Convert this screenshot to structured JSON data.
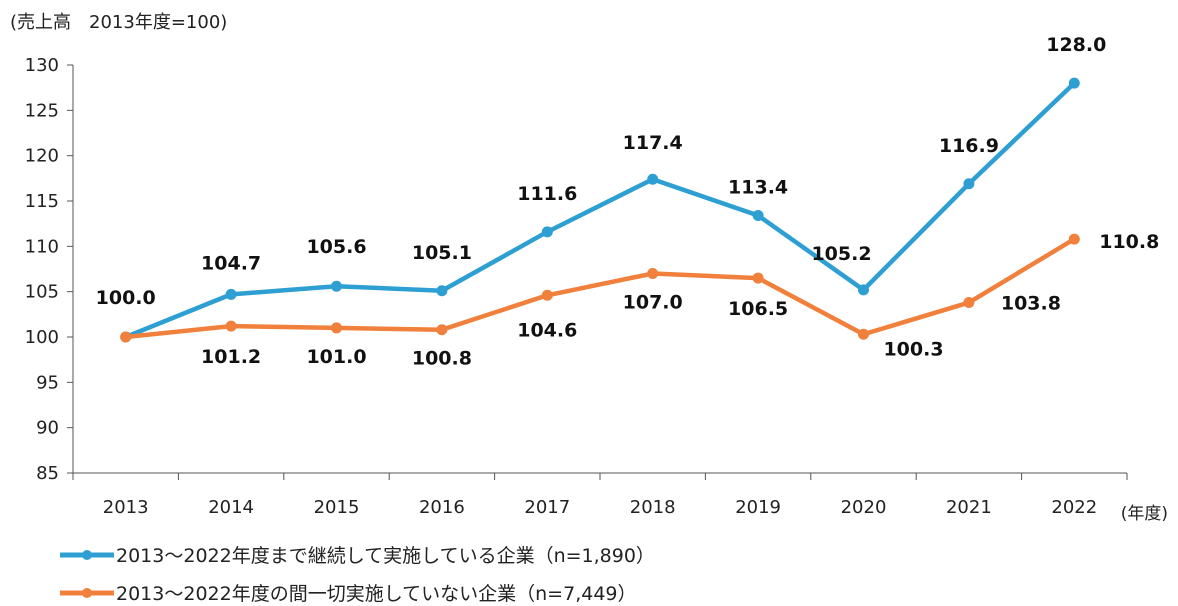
{
  "chart_data": {
    "type": "line",
    "ylabel": "(売上高　2013年度=100)",
    "xlabel": "(年度)",
    "categories": [
      "2013",
      "2014",
      "2015",
      "2016",
      "2017",
      "2018",
      "2019",
      "2020",
      "2021",
      "2022"
    ],
    "ylim": [
      85,
      130
    ],
    "yticks": [
      85,
      90,
      95,
      100,
      105,
      110,
      115,
      120,
      125,
      130
    ],
    "grid": false,
    "legend_placement": "bottom",
    "series": [
      {
        "name": "2013～2022年度まで継続して実施している企業（n=1,890）",
        "color": "#2e9fd3",
        "values": [
          100.0,
          104.7,
          105.6,
          105.1,
          111.6,
          117.4,
          113.4,
          105.2,
          116.9,
          128.0
        ],
        "labels": [
          "100.0",
          "104.7",
          "105.6",
          "105.1",
          "111.6",
          "117.4",
          "113.4",
          "105.2",
          "116.9",
          "128.0"
        ]
      },
      {
        "name": "2013～2022年度の間一切実施していない企業（n=7,449）",
        "color": "#f0803c",
        "values": [
          100.0,
          101.2,
          101.0,
          100.8,
          104.6,
          107.0,
          106.5,
          100.3,
          103.8,
          110.8
        ],
        "labels": [
          "",
          "101.2",
          "101.0",
          "100.8",
          "104.6",
          "107.0",
          "106.5",
          "100.3",
          "103.8",
          "110.8"
        ]
      }
    ]
  }
}
